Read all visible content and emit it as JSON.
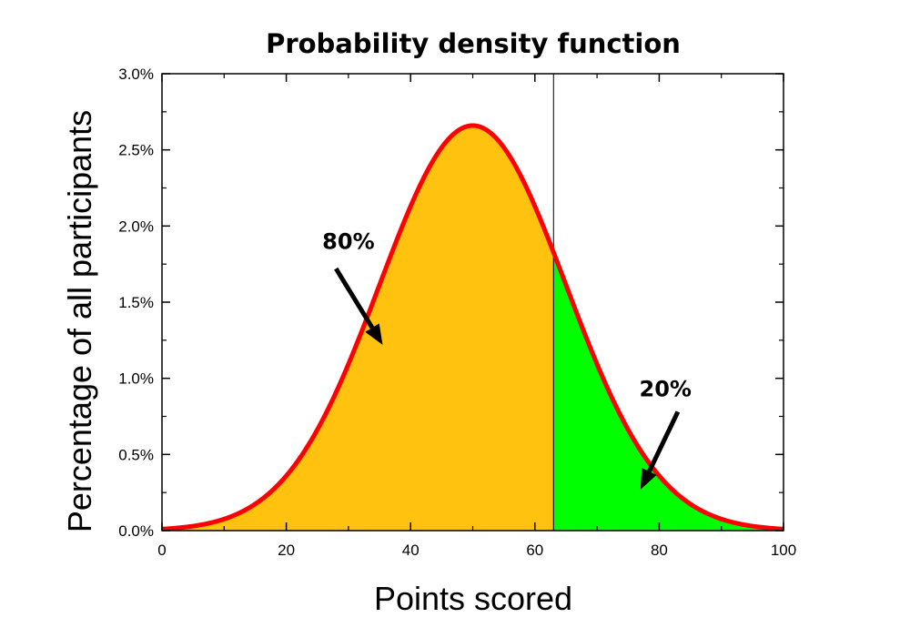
{
  "chart_data": {
    "type": "area",
    "title": "Probability density function",
    "xlabel": "Points scored",
    "ylabel": "Percentage of all participants",
    "xlim": [
      0,
      100
    ],
    "ylim": [
      0,
      0.03
    ],
    "x_ticks": [
      0,
      20,
      40,
      60,
      80,
      100
    ],
    "x_tick_labels": [
      "0",
      "20",
      "40",
      "60",
      "80",
      "100"
    ],
    "y_ticks": [
      0,
      0.005,
      0.01,
      0.015,
      0.02,
      0.025,
      0.03
    ],
    "y_tick_labels": [
      "0.0%",
      "0.5%",
      "1.0%",
      "1.5%",
      "2.0%",
      "2.5%",
      "3.0%"
    ],
    "grid": false,
    "distribution": {
      "kind": "normal",
      "mean": 50,
      "sd": 15
    },
    "threshold_x": 63,
    "curve_color": "#ff0000",
    "regions": [
      {
        "label": "80%",
        "x_range": [
          0,
          63
        ],
        "color": "#ffc20e"
      },
      {
        "label": "20%",
        "x_range": [
          63,
          100
        ],
        "color": "#00ff00"
      }
    ],
    "annotations": [
      {
        "text": "80%",
        "text_at": [
          30,
          0.0185
        ],
        "arrow_from": [
          28,
          0.0172
        ],
        "arrow_to": [
          35.5,
          0.0122
        ]
      },
      {
        "text": "20%",
        "text_at": [
          81,
          0.0088
        ],
        "arrow_from": [
          83,
          0.0078
        ],
        "arrow_to": [
          77,
          0.0027
        ]
      }
    ]
  }
}
